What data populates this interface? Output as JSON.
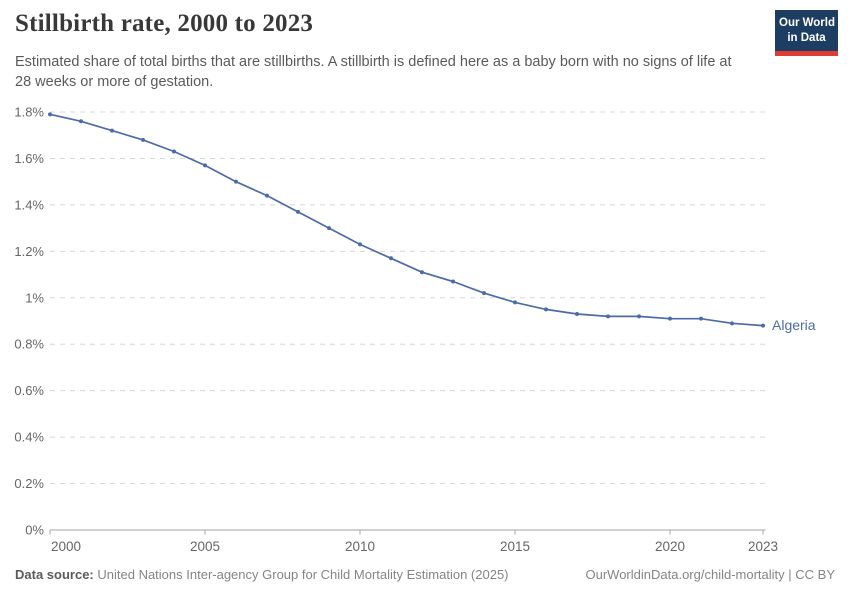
{
  "header": {
    "title": "Stillbirth rate, 2000 to 2023",
    "subtitle": "Estimated share of total births that are stillbirths. A stillbirth is defined here as a baby born with no signs of life at 28 weeks or more of gestation."
  },
  "logo": {
    "line1": "Our World",
    "line2": "in Data",
    "bg_color": "#1d3d63",
    "stripe_color": "#dc3e33"
  },
  "chart_data": {
    "type": "line",
    "title": "Stillbirth rate, 2000 to 2023",
    "x": [
      2000,
      2001,
      2002,
      2003,
      2004,
      2005,
      2006,
      2007,
      2008,
      2009,
      2010,
      2011,
      2012,
      2013,
      2014,
      2015,
      2016,
      2017,
      2018,
      2019,
      2020,
      2021,
      2022,
      2023
    ],
    "series": [
      {
        "name": "Algeria",
        "color": "#4C6BA8",
        "values": [
          1.79,
          1.76,
          1.72,
          1.68,
          1.63,
          1.57,
          1.5,
          1.44,
          1.37,
          1.3,
          1.23,
          1.17,
          1.11,
          1.07,
          1.02,
          0.98,
          0.95,
          0.93,
          0.92,
          0.92,
          0.91,
          0.91,
          0.89,
          0.88
        ]
      }
    ],
    "unit": "%",
    "ylabel": "",
    "xlabel": "",
    "ylim": [
      0,
      1.8
    ],
    "ytick_step": 0.2,
    "ytick_labels": [
      "0%",
      "0.2%",
      "0.4%",
      "0.6%",
      "0.8%",
      "1%",
      "1.2%",
      "1.4%",
      "1.6%",
      "1.8%"
    ],
    "xticks": [
      2000,
      2005,
      2010,
      2015,
      2020,
      2023
    ],
    "grid": "horizontal-dashed",
    "legend_position": "end-of-line-label",
    "grid_color": "#d8d8d8",
    "axis_color": "#a5a5a5",
    "tick_label_color": "#666666"
  },
  "footer": {
    "source_label": "Data source:",
    "source_text": "United Nations Inter-agency Group for Child Mortality Estimation (2025)",
    "link_text": "OurWorldinData.org/child-mortality | CC BY"
  }
}
